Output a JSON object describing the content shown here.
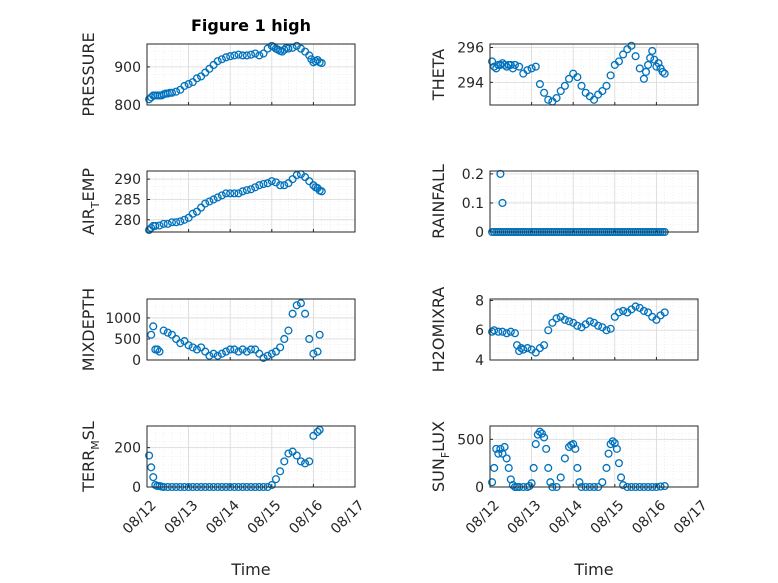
{
  "figure_title": "Figure 1 high",
  "shared_xlabel": "Time",
  "marker_color": "#0072BD",
  "chart_data": [
    {
      "id": "pressure",
      "type": "scatter",
      "title": "Figure 1 high",
      "ylabel": "PRESSURE",
      "ylim": [
        800,
        960
      ],
      "yticks": [
        800,
        900
      ],
      "yticklabels": [
        "800",
        "900"
      ],
      "xlim": [
        0,
        5
      ],
      "xticks": [
        0,
        1,
        2,
        3,
        4,
        5
      ],
      "xticklabels": [],
      "grid": true,
      "minor_grid": true,
      "x": [
        0.05,
        0.1,
        0.15,
        0.2,
        0.25,
        0.3,
        0.35,
        0.4,
        0.45,
        0.5,
        0.55,
        0.6,
        0.7,
        0.8,
        0.9,
        1.0,
        1.1,
        1.2,
        1.3,
        1.4,
        1.5,
        1.6,
        1.7,
        1.8,
        1.9,
        2.0,
        2.1,
        2.2,
        2.3,
        2.4,
        2.5,
        2.6,
        2.7,
        2.8,
        2.9,
        3.0,
        3.05,
        3.1,
        3.15,
        3.2,
        3.25,
        3.3,
        3.35,
        3.4,
        3.5,
        3.6,
        3.7,
        3.8,
        3.9,
        3.95,
        4.0,
        4.05,
        4.1,
        4.15,
        4.2
      ],
      "y": [
        815,
        820,
        825,
        825,
        825,
        825,
        825,
        828,
        830,
        830,
        832,
        832,
        835,
        840,
        850,
        855,
        860,
        870,
        875,
        885,
        895,
        905,
        915,
        920,
        925,
        928,
        930,
        932,
        930,
        930,
        932,
        935,
        930,
        935,
        948,
        955,
        952,
        948,
        945,
        942,
        940,
        945,
        950,
        948,
        950,
        955,
        948,
        940,
        930,
        920,
        912,
        915,
        918,
        912,
        910
      ]
    },
    {
      "id": "theta",
      "type": "scatter",
      "ylabel": "THETA",
      "ylim": [
        292.7,
        296.2
      ],
      "yticks": [
        294,
        296
      ],
      "yticklabels": [
        "294",
        "296"
      ],
      "xlim": [
        0,
        5
      ],
      "xticks": [
        0,
        1,
        2,
        3,
        4,
        5
      ],
      "xticklabels": [],
      "grid": true,
      "minor_grid": true,
      "x": [
        0.05,
        0.1,
        0.15,
        0.2,
        0.25,
        0.3,
        0.35,
        0.4,
        0.45,
        0.5,
        0.55,
        0.6,
        0.7,
        0.8,
        0.9,
        1.0,
        1.1,
        1.2,
        1.3,
        1.4,
        1.5,
        1.6,
        1.7,
        1.8,
        1.9,
        2.0,
        2.1,
        2.2,
        2.3,
        2.4,
        2.5,
        2.6,
        2.7,
        2.8,
        2.9,
        3.0,
        3.1,
        3.2,
        3.3,
        3.4,
        3.5,
        3.6,
        3.7,
        3.75,
        3.8,
        3.85,
        3.9,
        3.95,
        4.0,
        4.05,
        4.1,
        4.15,
        4.2
      ],
      "y": [
        295.2,
        294.9,
        294.8,
        295.0,
        295.0,
        295.1,
        295.0,
        294.9,
        295.0,
        295.0,
        294.8,
        295.0,
        294.9,
        294.5,
        294.7,
        294.8,
        294.9,
        293.9,
        293.4,
        293.0,
        292.9,
        293.1,
        293.5,
        293.8,
        294.2,
        294.5,
        294.3,
        293.8,
        293.4,
        293.2,
        293.0,
        293.3,
        293.5,
        293.8,
        294.4,
        295.0,
        295.2,
        295.6,
        295.9,
        296.1,
        295.5,
        294.8,
        294.2,
        294.6,
        295.0,
        295.4,
        295.8,
        295.3,
        294.9,
        295.1,
        294.8,
        294.6,
        294.5
      ]
    },
    {
      "id": "air_temp",
      "type": "scatter",
      "ylabel": "AIR_TEMP",
      "ylabel_base": "AIR",
      "ylabel_sub": "T",
      "ylabel_rest": "EMP",
      "ylim": [
        277,
        292
      ],
      "yticks": [
        280,
        285,
        290
      ],
      "yticklabels": [
        "280",
        "285",
        "290"
      ],
      "xlim": [
        0,
        5
      ],
      "xticks": [
        0,
        1,
        2,
        3,
        4,
        5
      ],
      "xticklabels": [],
      "grid": true,
      "minor_grid": true,
      "x": [
        0.05,
        0.1,
        0.15,
        0.2,
        0.3,
        0.4,
        0.5,
        0.6,
        0.7,
        0.8,
        0.9,
        1.0,
        1.1,
        1.2,
        1.3,
        1.4,
        1.5,
        1.6,
        1.7,
        1.8,
        1.9,
        2.0,
        2.1,
        2.2,
        2.3,
        2.4,
        2.5,
        2.6,
        2.7,
        2.8,
        2.9,
        3.0,
        3.1,
        3.2,
        3.3,
        3.4,
        3.5,
        3.6,
        3.7,
        3.8,
        3.9,
        4.0,
        4.05,
        4.1,
        4.15,
        4.2
      ],
      "y": [
        277.5,
        278.0,
        278.5,
        278.5,
        278.6,
        279.0,
        279.0,
        279.4,
        279.4,
        279.6,
        280.0,
        280.5,
        281.5,
        282.0,
        283.0,
        284.0,
        284.5,
        285.0,
        285.5,
        286.0,
        286.5,
        286.5,
        286.5,
        286.5,
        287.0,
        287.3,
        287.5,
        288.0,
        288.5,
        288.8,
        289.0,
        289.5,
        289.2,
        288.5,
        288.5,
        289.0,
        290.0,
        291.0,
        291.2,
        290.5,
        289.5,
        288.5,
        288.0,
        287.8,
        287.2,
        287.0
      ]
    },
    {
      "id": "rainfall",
      "type": "scatter",
      "ylabel": "RAINFALL",
      "ylim": [
        0,
        0.21
      ],
      "yticks": [
        0,
        0.1,
        0.2
      ],
      "yticklabels": [
        "0",
        "0.1",
        "0.2"
      ],
      "xlim": [
        0,
        5
      ],
      "xticks": [
        0,
        1,
        2,
        3,
        4,
        5
      ],
      "xticklabels": [],
      "grid": true,
      "minor_grid": true,
      "x": [
        0.25,
        0.3
      ],
      "y": [
        0.2,
        0.1
      ],
      "baseline_range": [
        0.05,
        4.2
      ],
      "baseline_value": 0
    },
    {
      "id": "mixdepth",
      "type": "scatter",
      "ylabel": "MIXDEPTH",
      "ylim": [
        0,
        1450
      ],
      "yticks": [
        0,
        500,
        1000
      ],
      "yticklabels": [
        "0",
        "500",
        "1000"
      ],
      "xlim": [
        0,
        5
      ],
      "xticks": [
        0,
        1,
        2,
        3,
        4,
        5
      ],
      "xticklabels": [],
      "grid": true,
      "minor_grid": true,
      "x": [
        0.1,
        0.15,
        0.2,
        0.25,
        0.3,
        0.4,
        0.5,
        0.6,
        0.7,
        0.8,
        0.9,
        1.0,
        1.1,
        1.2,
        1.3,
        1.4,
        1.5,
        1.6,
        1.7,
        1.8,
        1.9,
        2.0,
        2.1,
        2.2,
        2.3,
        2.4,
        2.5,
        2.6,
        2.7,
        2.8,
        2.9,
        3.0,
        3.1,
        3.2,
        3.3,
        3.4,
        3.5,
        3.6,
        3.7,
        3.8,
        3.9,
        4.0,
        4.1,
        4.15
      ],
      "y": [
        600,
        800,
        250,
        250,
        200,
        700,
        650,
        600,
        500,
        400,
        450,
        350,
        300,
        250,
        300,
        200,
        100,
        150,
        100,
        150,
        200,
        250,
        250,
        200,
        250,
        200,
        250,
        250,
        150,
        50,
        100,
        150,
        200,
        300,
        500,
        700,
        1100,
        1300,
        1350,
        1100,
        500,
        150,
        200,
        600
      ]
    },
    {
      "id": "h2omixra",
      "type": "scatter",
      "ylabel": "H2OMIXRA",
      "ylim": [
        4,
        8.1
      ],
      "yticks": [
        4,
        6,
        8
      ],
      "yticklabels": [
        "4",
        "6",
        "8"
      ],
      "xlim": [
        0,
        5
      ],
      "xticks": [
        0,
        1,
        2,
        3,
        4,
        5
      ],
      "xticklabels": [],
      "grid": true,
      "minor_grid": true,
      "x": [
        0.05,
        0.1,
        0.2,
        0.3,
        0.4,
        0.5,
        0.6,
        0.65,
        0.7,
        0.75,
        0.8,
        0.9,
        1.0,
        1.1,
        1.2,
        1.3,
        1.4,
        1.5,
        1.6,
        1.7,
        1.8,
        1.9,
        2.0,
        2.1,
        2.2,
        2.3,
        2.4,
        2.5,
        2.6,
        2.7,
        2.8,
        2.9,
        3.0,
        3.1,
        3.2,
        3.3,
        3.4,
        3.5,
        3.6,
        3.7,
        3.8,
        3.9,
        4.0,
        4.1,
        4.2
      ],
      "y": [
        5.9,
        6.0,
        5.9,
        5.9,
        5.8,
        5.9,
        5.8,
        5.0,
        4.6,
        4.8,
        4.7,
        4.8,
        4.7,
        4.5,
        4.8,
        5.0,
        6.0,
        6.5,
        6.8,
        6.9,
        6.7,
        6.6,
        6.5,
        6.3,
        6.2,
        6.4,
        6.6,
        6.5,
        6.3,
        6.2,
        6.0,
        6.1,
        6.9,
        7.2,
        7.3,
        7.2,
        7.4,
        7.6,
        7.5,
        7.3,
        7.2,
        6.9,
        6.7,
        7.0,
        7.2
      ]
    },
    {
      "id": "terr_msl",
      "type": "scatter",
      "ylabel": "TERR_MSL",
      "ylabel_base": "TERR",
      "ylabel_sub": "M",
      "ylabel_rest": "SL",
      "ylim": [
        0,
        310
      ],
      "yticks": [
        0,
        200
      ],
      "yticklabels": [
        "0",
        "200"
      ],
      "xlim": [
        0,
        5
      ],
      "xticks": [
        0,
        1,
        2,
        3,
        4,
        5
      ],
      "xticklabels": [
        "08/12",
        "08/13",
        "08/14",
        "08/15",
        "08/16",
        "08/17"
      ],
      "grid": true,
      "minor_grid": true,
      "x": [
        0.05,
        0.1,
        0.15,
        0.2,
        0.25,
        0.3,
        0.35,
        0.4,
        0.5,
        0.6,
        0.7,
        0.8,
        0.9,
        1.0,
        1.1,
        1.2,
        1.3,
        1.4,
        1.5,
        1.6,
        1.7,
        1.8,
        1.9,
        2.0,
        2.1,
        2.2,
        2.3,
        2.4,
        2.5,
        2.6,
        2.7,
        2.8,
        2.9,
        3.0,
        3.1,
        3.2,
        3.3,
        3.4,
        3.5,
        3.6,
        3.7,
        3.8,
        3.9,
        4.0,
        4.1,
        4.15
      ],
      "y": [
        160,
        100,
        50,
        10,
        5,
        5,
        2,
        0,
        0,
        0,
        0,
        0,
        0,
        0,
        0,
        0,
        0,
        0,
        0,
        0,
        0,
        0,
        0,
        0,
        0,
        0,
        0,
        0,
        0,
        0,
        0,
        0,
        0,
        10,
        40,
        80,
        130,
        170,
        180,
        160,
        130,
        120,
        130,
        260,
        280,
        290
      ]
    },
    {
      "id": "sun_flux",
      "type": "scatter",
      "ylabel": "SUN_FLUX",
      "ylabel_base": "SUN",
      "ylabel_sub": "F",
      "ylabel_rest": "LUX",
      "ylim": [
        0,
        640
      ],
      "yticks": [
        0,
        500
      ],
      "yticklabels": [
        "0",
        "500"
      ],
      "xlim": [
        0,
        5
      ],
      "xticks": [
        0,
        1,
        2,
        3,
        4,
        5
      ],
      "xticklabels": [
        "08/12",
        "08/13",
        "08/14",
        "08/15",
        "08/16",
        "08/17"
      ],
      "grid": true,
      "minor_grid": true,
      "x": [
        0.05,
        0.1,
        0.15,
        0.2,
        0.25,
        0.3,
        0.35,
        0.4,
        0.45,
        0.5,
        0.55,
        0.6,
        0.65,
        0.7,
        0.8,
        0.9,
        0.95,
        1.0,
        1.05,
        1.1,
        1.15,
        1.2,
        1.25,
        1.3,
        1.35,
        1.4,
        1.45,
        1.5,
        1.6,
        1.7,
        1.8,
        1.9,
        1.95,
        2.0,
        2.05,
        2.1,
        2.15,
        2.2,
        2.3,
        2.4,
        2.5,
        2.6,
        2.7,
        2.8,
        2.85,
        2.9,
        2.95,
        3.0,
        3.05,
        3.1,
        3.15,
        3.2,
        3.3,
        3.4,
        3.5,
        3.6,
        3.7,
        3.8,
        3.9,
        4.0,
        4.1,
        4.2
      ],
      "y": [
        50,
        200,
        400,
        350,
        400,
        350,
        420,
        300,
        200,
        80,
        20,
        0,
        0,
        0,
        0,
        0,
        10,
        40,
        200,
        450,
        550,
        580,
        560,
        520,
        400,
        200,
        50,
        0,
        0,
        100,
        300,
        420,
        440,
        450,
        400,
        200,
        50,
        0,
        0,
        0,
        0,
        0,
        50,
        200,
        350,
        450,
        480,
        460,
        400,
        250,
        100,
        20,
        0,
        0,
        0,
        0,
        0,
        0,
        0,
        0,
        5,
        10
      ]
    }
  ]
}
